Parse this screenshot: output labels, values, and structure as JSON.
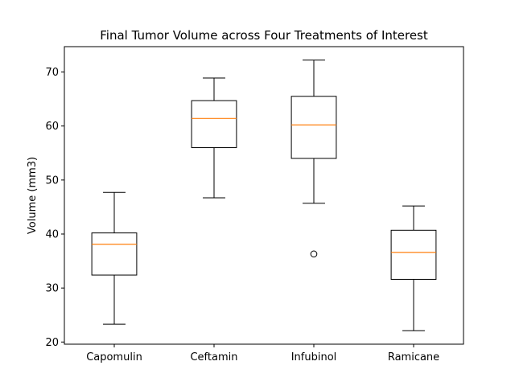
{
  "chart_data": {
    "type": "box",
    "title": "Final Tumor Volume across Four Treatments of Interest",
    "xlabel": "",
    "ylabel": "Volume (mm3)",
    "ylim": [
      19.6,
      74.7
    ],
    "yticks": [
      20,
      30,
      40,
      50,
      60,
      70
    ],
    "grid": false,
    "categories": [
      "Capomulin",
      "Ceftamin",
      "Infubinol",
      "Ramicane"
    ],
    "boxes": [
      {
        "category": "Capomulin",
        "whisker_low": 23.3,
        "q1": 32.4,
        "median": 38.1,
        "q3": 40.2,
        "whisker_high": 47.7,
        "outliers": []
      },
      {
        "category": "Ceftamin",
        "whisker_low": 46.7,
        "q1": 56.0,
        "median": 61.4,
        "q3": 64.7,
        "whisker_high": 68.9,
        "outliers": []
      },
      {
        "category": "Infubinol",
        "whisker_low": 45.7,
        "q1": 54.0,
        "median": 60.2,
        "q3": 65.5,
        "whisker_high": 72.2,
        "outliers": [
          36.3
        ]
      },
      {
        "category": "Ramicane",
        "whisker_low": 22.1,
        "q1": 31.6,
        "median": 36.6,
        "q3": 40.7,
        "whisker_high": 45.2,
        "outliers": []
      }
    ],
    "colors": {
      "box": "#000000",
      "median": "#ff7f0e",
      "outlier": "#000000"
    }
  }
}
